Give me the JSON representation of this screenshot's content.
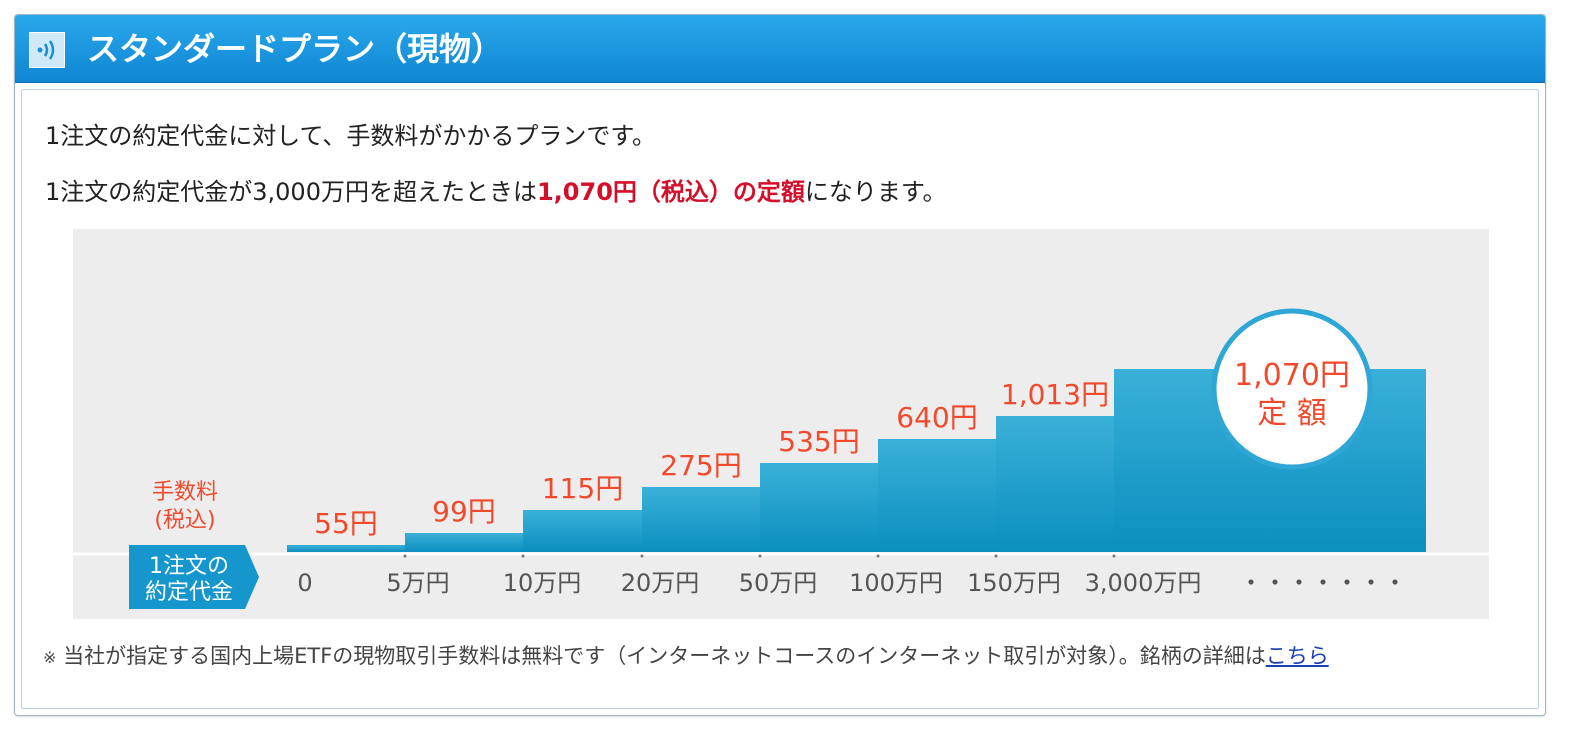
{
  "header": {
    "title": "スタンダードプラン（現物）",
    "icon": "signal-icon"
  },
  "intro": {
    "line1": "1注文の約定代金に対して、手数料がかかるプランです。",
    "line2_prefix": "1注文の約定代金が3,000万円を超えたときは",
    "line2_highlight": "1,070円（税込）の定額",
    "line2_suffix": "になります。"
  },
  "chart_data": {
    "type": "bar",
    "title": "",
    "ylabel": "手数料（税込）",
    "xlabel": "1注文の約定代金",
    "categories": [
      "0",
      "5万円",
      "10万円",
      "20万円",
      "50万円",
      "100万円",
      "150万円",
      "3,000万円"
    ],
    "values": [
      55,
      99,
      115,
      275,
      535,
      640,
      1013,
      1070
    ],
    "value_labels": [
      "55円",
      "99円",
      "115円",
      "275円",
      "535円",
      "640円",
      "1,013円",
      "1,070円"
    ],
    "ylabel_line1": "手数料",
    "ylabel_line2": "(税込)",
    "xlabel_line1": "1注文の",
    "xlabel_line2": "約定代金",
    "tick_labels": [
      "0",
      "5万円",
      "10万円",
      "20万円",
      "50万円",
      "100万円",
      "150万円",
      "3,000万円",
      "・・・・・・・"
    ],
    "flat_badge_line1": "1,070円",
    "flat_badge_line2": "定 額",
    "colors": {
      "bar_top": "#3ab0d8",
      "bar_bottom": "#0b8fbf",
      "label": "#f0492b",
      "background": "#ededed",
      "tag": "#1596cd"
    }
  },
  "footnote": {
    "mark": "※",
    "text": "当社が指定する国内上場ETFの現物取引手数料は無料です（インターネットコースのインターネット取引が対象）。銘柄の詳細は",
    "link": "こちら"
  }
}
